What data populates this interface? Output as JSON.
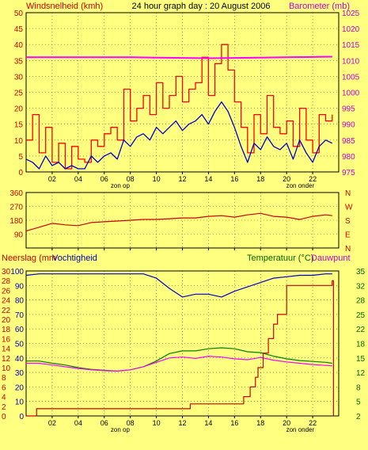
{
  "header": {
    "left_title": "Windsnelheid (kmh)",
    "center_title": "24 hour graph day : 20 August 2006",
    "right_title": "Barometer (mb)"
  },
  "colors": {
    "background": "#ffff80",
    "plot_border": "#000000",
    "wind_speed": "#0000cc",
    "wind_gust": "#ff0000",
    "barometer": "#ff00ff",
    "wind_direction": "#cc0000",
    "humidity": "#0000cc",
    "temperature": "#008000",
    "dewpoint": "#ff00ff",
    "rain": "#cc0000",
    "magenta_label": "#cc00cc",
    "green_label": "#006600",
    "blue_label": "#0000aa",
    "red_label": "#cc0000"
  },
  "x_axis": {
    "ticks": [
      "02",
      "04",
      "06",
      "08",
      "10",
      "12",
      "14",
      "16",
      "18",
      "20",
      "22"
    ],
    "sunrise_label": "zon op",
    "sunset_label": "zon onder",
    "sunrise_hour": 6.8,
    "sunset_hour": 20.5
  },
  "chart_data": [
    {
      "type": "line",
      "title": "24 hour graph day : 20 August 2006",
      "x_unit": "hour",
      "y_left_label": "Windsnelheid (kmh)",
      "y_left_ticks": [
        "0",
        "5",
        "10",
        "15",
        "20",
        "25",
        "30",
        "35",
        "40",
        "45",
        "50"
      ],
      "y_left_range": [
        0,
        50
      ],
      "y_right_label": "Barometer (mb)",
      "y_right_ticks": [
        "975",
        "980",
        "985",
        "990",
        "995",
        "1000",
        "1005",
        "1010",
        "1015",
        "1020",
        "1025"
      ],
      "y_right_range": [
        975,
        1025
      ],
      "series": [
        {
          "key": "gust",
          "axis": "left",
          "x": [
            0,
            0.5,
            1,
            1.5,
            2,
            2.5,
            3,
            3.5,
            4,
            4.5,
            5,
            5.5,
            6,
            6.5,
            7,
            7.5,
            8,
            8.5,
            9,
            9.5,
            10,
            10.5,
            11,
            11.5,
            12,
            12.5,
            13,
            13.5,
            14,
            14.5,
            15,
            15.5,
            16,
            16.5,
            17,
            17.5,
            18,
            18.5,
            19,
            19.5,
            20,
            20.5,
            21,
            21.5,
            22,
            22.5,
            23,
            23.5
          ],
          "values": [
            10,
            18,
            6,
            14,
            3,
            9,
            1,
            8,
            4,
            3,
            10,
            8,
            12,
            14,
            10,
            26,
            16,
            20,
            24,
            18,
            28,
            20,
            24,
            30,
            22,
            26,
            28,
            36,
            24,
            34,
            40,
            32,
            22,
            14,
            6,
            18,
            12,
            24,
            14,
            12,
            16,
            8,
            20,
            10,
            6,
            18,
            16,
            18
          ]
        },
        {
          "key": "speed",
          "axis": "left",
          "x": [
            0,
            0.5,
            1,
            1.5,
            2,
            2.5,
            3,
            3.5,
            4,
            4.5,
            5,
            5.5,
            6,
            6.5,
            7,
            7.5,
            8,
            8.5,
            9,
            9.5,
            10,
            10.5,
            11,
            11.5,
            12,
            12.5,
            13,
            13.5,
            14,
            14.5,
            15,
            15.5,
            16,
            16.5,
            17,
            17.5,
            18,
            18.5,
            19,
            19.5,
            20,
            20.5,
            21,
            21.5,
            22,
            22.5,
            23,
            23.5
          ],
          "values": [
            4,
            3,
            1,
            5,
            2,
            3,
            1,
            2,
            1,
            1,
            5,
            3,
            5,
            6,
            4,
            10,
            8,
            11,
            12,
            10,
            14,
            12,
            14,
            16,
            13,
            15,
            16,
            18,
            15,
            19,
            22,
            19,
            14,
            8,
            3,
            9,
            7,
            11,
            8,
            7,
            9,
            4,
            10,
            6,
            3,
            8,
            10,
            9
          ]
        },
        {
          "key": "pressure",
          "axis": "right",
          "x": [
            0,
            2,
            4,
            6,
            8,
            10,
            12,
            14,
            16,
            18,
            20,
            22,
            23.5
          ],
          "values": [
            1011,
            1011,
            1011,
            1011,
            1011,
            1010.9,
            1010.8,
            1010.7,
            1010.8,
            1010.9,
            1011,
            1011.1,
            1011.2
          ]
        }
      ]
    },
    {
      "type": "line",
      "x_unit": "hour",
      "y_left_ticks": [
        "360",
        "270",
        "180",
        "90"
      ],
      "y_left_range": [
        0,
        360
      ],
      "y_right_ticks": [
        "N",
        "W",
        "S",
        "E",
        "N"
      ],
      "series": [
        {
          "key": "direction",
          "x": [
            0,
            1,
            2,
            3,
            4,
            5,
            6,
            7,
            8,
            9,
            10,
            11,
            12,
            13,
            14,
            15,
            16,
            17,
            18,
            19,
            20,
            21,
            22,
            23,
            23.5
          ],
          "values": [
            110,
            135,
            160,
            150,
            145,
            165,
            170,
            175,
            180,
            185,
            185,
            190,
            195,
            195,
            205,
            210,
            200,
            215,
            225,
            205,
            200,
            185,
            205,
            215,
            210
          ]
        }
      ]
    },
    {
      "type": "line",
      "x_unit": "hour",
      "y_left_label_rain": "Neerslag (mm",
      "y_left_label_hum": "Vochtigheid",
      "y_left_ticks_rain": [
        "0",
        "2",
        "4",
        "6",
        "8",
        "10",
        "12",
        "14",
        "16",
        "18",
        "20",
        "22",
        "24",
        "26",
        "28",
        "30"
      ],
      "y_left_ticks_hum": [
        "0",
        "10",
        "20",
        "30",
        "40",
        "50",
        "60",
        "70",
        "80",
        "90",
        "100"
      ],
      "y_left_range": [
        0,
        100
      ],
      "y_right_label_temp": "Temperatuur (°C)",
      "y_right_label_dew": "Dauwpunt",
      "y_right_ticks": [
        "2",
        "5",
        "8",
        "12",
        "15",
        "18",
        "22",
        "25",
        "28",
        "32",
        "35"
      ],
      "y_right_range": [
        2,
        35
      ],
      "series": [
        {
          "key": "humidity",
          "axis": "left",
          "x": [
            0,
            1,
            2,
            3,
            4,
            5,
            6,
            7,
            8,
            9,
            10,
            11,
            12,
            13,
            14,
            15,
            16,
            17,
            18,
            19,
            20,
            21,
            22,
            23,
            23.5
          ],
          "values": [
            97,
            98,
            98,
            98,
            98,
            98,
            98,
            98,
            98,
            98,
            95,
            88,
            82,
            84,
            84,
            82,
            86,
            89,
            92,
            95,
            96,
            97,
            97,
            98,
            98
          ]
        },
        {
          "key": "temperature",
          "axis": "right",
          "x": [
            0,
            1,
            2,
            3,
            4,
            5,
            6,
            7,
            8,
            9,
            10,
            11,
            12,
            13,
            14,
            15,
            16,
            17,
            18,
            19,
            20,
            21,
            22,
            23,
            23.5
          ],
          "values": [
            14.5,
            14.5,
            14,
            13.6,
            13,
            12.6,
            12.4,
            12.2,
            12.5,
            13.2,
            14.5,
            16.2,
            16.8,
            16.8,
            17.3,
            17.5,
            17.3,
            16.6,
            16.4,
            15.6,
            15,
            14.6,
            14.4,
            14.2,
            14
          ]
        },
        {
          "key": "dewpoint",
          "axis": "right",
          "x": [
            0,
            1,
            2,
            3,
            4,
            5,
            6,
            7,
            8,
            9,
            10,
            11,
            12,
            13,
            14,
            15,
            16,
            17,
            18,
            19,
            20,
            21,
            22,
            23,
            23.5
          ],
          "values": [
            14,
            14,
            13.6,
            13.2,
            12.8,
            12.5,
            12.3,
            12.2,
            12.5,
            13.2,
            14.2,
            15.2,
            15.4,
            15.1,
            15.6,
            15.4,
            15,
            14.8,
            15.3,
            14.7,
            14.3,
            14,
            13.7,
            13.5,
            13.4
          ]
        },
        {
          "key": "rain",
          "axis": "left_rain",
          "x": [
            0,
            0.3,
            0.8,
            2,
            4,
            6,
            8,
            10,
            12,
            12.6,
            14,
            16,
            16.7,
            17.2,
            17.6,
            17.8,
            18.2,
            18.6,
            19,
            19.3,
            20,
            22,
            23.5,
            23.6
          ],
          "values": [
            0,
            0,
            1.5,
            1.5,
            1.5,
            1.5,
            1.5,
            1.5,
            1.5,
            2.5,
            2.5,
            2.5,
            4,
            6,
            8,
            10,
            13,
            16,
            19,
            21,
            27,
            27,
            28,
            0
          ]
        }
      ]
    }
  ]
}
